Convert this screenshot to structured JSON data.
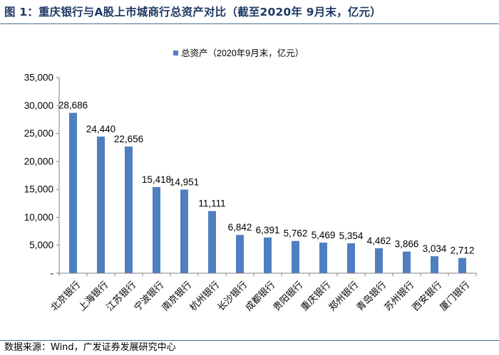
{
  "figure": {
    "title": "图 1：重庆银行与A股上市城商行总资产对比（截至2020年 9月末，亿元）",
    "source": "数据来源：Wind，广发证券发展研究中心"
  },
  "colors": {
    "bar": "#4f7fbf",
    "title": "#1f3864",
    "axis": "#808080",
    "rule": "#4a6a9a"
  },
  "chart_data": {
    "type": "bar",
    "title": "",
    "xlabel": "",
    "ylabel": "",
    "ylim": [
      0,
      35000
    ],
    "yticks": [
      0,
      5000,
      10000,
      15000,
      20000,
      25000,
      30000,
      35000
    ],
    "ytick_labels": [
      "-",
      "5,000",
      "10,000",
      "15,000",
      "20,000",
      "25,000",
      "30,000",
      "35,000"
    ],
    "legend": "总资产（2020年9月末，亿元）",
    "legend_position": "top-left",
    "grid": false,
    "categories": [
      "北京银行",
      "上海银行",
      "江苏银行",
      "宁波银行",
      "南京银行",
      "杭州银行",
      "长沙银行",
      "成都银行",
      "贵阳银行",
      "重庆银行",
      "郑州银行",
      "青岛银行",
      "苏州银行",
      "西安银行",
      "厦门银行"
    ],
    "values": [
      28686,
      24440,
      22656,
      15418,
      14951,
      11111,
      6842,
      6391,
      5762,
      5469,
      5354,
      4462,
      3866,
      3034,
      2712
    ],
    "value_labels": [
      "28,686",
      "24,440",
      "22,656",
      "15,418",
      "14,951",
      "11,111",
      "6,842",
      "6,391",
      "5,762",
      "5,469",
      "5,354",
      "4,462",
      "3,866",
      "3,034",
      "2,712"
    ]
  }
}
